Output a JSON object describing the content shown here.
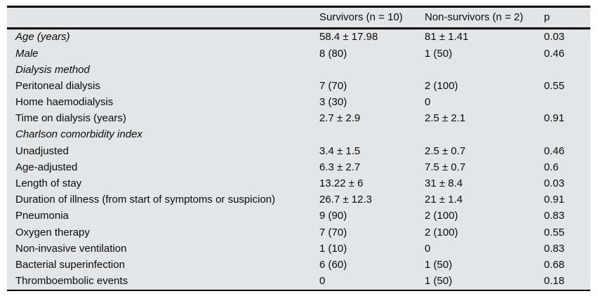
{
  "colors": {
    "table_bg": "#e2e6e8",
    "rule": "#000000",
    "text": "#0a0a0a",
    "page_bg": "#ffffff"
  },
  "table": {
    "columns": [
      "",
      "Survivors (n = 10)",
      "Non-survivors (n = 2)",
      "p"
    ],
    "rows": [
      {
        "label": "Age (years)",
        "italic": true,
        "survivors": "58.4 ± 17.98",
        "nonsurvivors": "81 ± 1.41",
        "p": "0.03"
      },
      {
        "label": "Male",
        "italic": true,
        "survivors": "8 (80)",
        "nonsurvivors": "1 (50)",
        "p": "0.46"
      },
      {
        "label": "Dialysis method",
        "italic": true,
        "survivors": "",
        "nonsurvivors": "",
        "p": ""
      },
      {
        "label": "Peritoneal dialysis",
        "italic": false,
        "survivors": "7 (70)",
        "nonsurvivors": "2 (100)",
        "p": "0.55"
      },
      {
        "label": "Home haemodialysis",
        "italic": false,
        "survivors": "3 (30)",
        "nonsurvivors": "0",
        "p": ""
      },
      {
        "label": "Time on dialysis (years)",
        "italic": false,
        "survivors": "2.7 ± 2.9",
        "nonsurvivors": "2.5 ± 2.1",
        "p": "0.91"
      },
      {
        "label": "Charlson comorbidity index",
        "italic": true,
        "survivors": "",
        "nonsurvivors": "",
        "p": ""
      },
      {
        "label": "Unadjusted",
        "italic": false,
        "survivors": "3.4 ± 1.5",
        "nonsurvivors": "2.5 ± 0.7",
        "p": "0.46"
      },
      {
        "label": "Age-adjusted",
        "italic": false,
        "survivors": "6.3 ± 2.7",
        "nonsurvivors": "7.5 ± 0.7",
        "p": "0.6"
      },
      {
        "label": "Length of stay",
        "italic": false,
        "survivors": "13.22 ± 6",
        "nonsurvivors": "31 ± 8.4",
        "p": "0.03"
      },
      {
        "label": "Duration of illness (from start of symptoms or suspicion)",
        "italic": false,
        "survivors": "26.7 ± 12.3",
        "nonsurvivors": "21 ± 1.4",
        "p": "0.91"
      },
      {
        "label": "Pneumonia",
        "italic": false,
        "survivors": "9 (90)",
        "nonsurvivors": "2 (100)",
        "p": "0.83"
      },
      {
        "label": "Oxygen therapy",
        "italic": false,
        "survivors": "7 (70)",
        "nonsurvivors": "2 (100)",
        "p": "0.55"
      },
      {
        "label": "Non-invasive ventilation",
        "italic": false,
        "survivors": "1 (10)",
        "nonsurvivors": "0",
        "p": "0.83"
      },
      {
        "label": "Bacterial superinfection",
        "italic": false,
        "survivors": "6 (60)",
        "nonsurvivors": "1 (50)",
        "p": "0.68"
      },
      {
        "label": "Thromboembolic events",
        "italic": false,
        "survivors": "0",
        "nonsurvivors": "1 (50)",
        "p": "0.18"
      }
    ]
  }
}
